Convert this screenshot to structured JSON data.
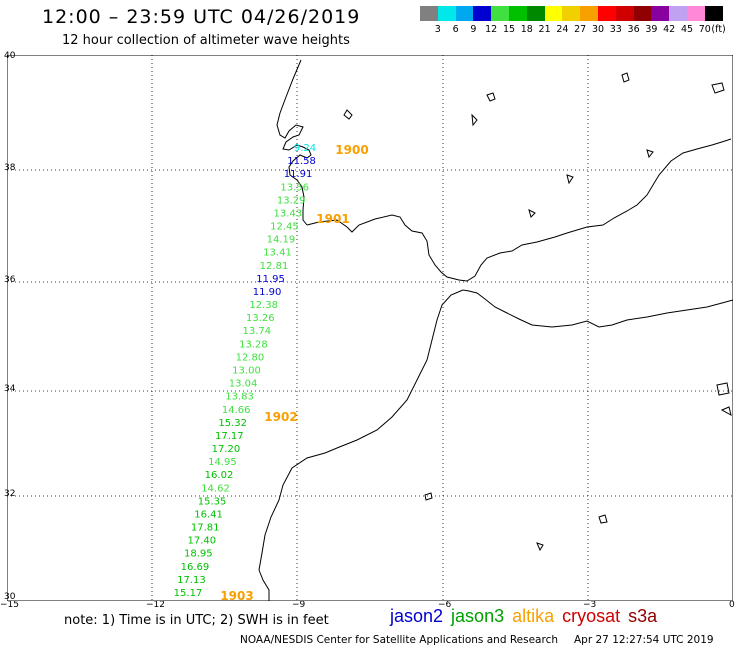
{
  "title": "12:00 – 23:59 UTC 04/26/2019",
  "subtitle": "12 hour collection of altimeter wave heights",
  "colorbar": {
    "colors": [
      "#808080",
      "#00e8e8",
      "#00a8f0",
      "#0000d0",
      "#40e040",
      "#00c000",
      "#008800",
      "#ffff00",
      "#f0d000",
      "#f8a000",
      "#ff0000",
      "#d00000",
      "#900000",
      "#8800a0",
      "#c0a0f0",
      "#ff88d8",
      "#000000"
    ],
    "labels": [
      "3",
      "6",
      "9",
      "12",
      "15",
      "18",
      "21",
      "24",
      "27",
      "30",
      "33",
      "36",
      "39",
      "42",
      "45",
      "70",
      "(ft)"
    ]
  },
  "axes": {
    "x_ticks": [
      "−15",
      "−12",
      "−9",
      "−6",
      "−3",
      "0"
    ],
    "y_ticks": [
      "40",
      "38",
      "36",
      "34",
      "32",
      "30"
    ]
  },
  "chart_data": {
    "type": "scatter",
    "xlim": [
      -15,
      0
    ],
    "ylim": [
      30,
      40
    ],
    "grid": true,
    "track_points": [
      {
        "label": "9.24",
        "color": "#00e8e8"
      },
      {
        "label": "11.58",
        "color": "#0000d0"
      },
      {
        "label": "11.91",
        "color": "#0000d0"
      },
      {
        "label": "13.56",
        "color": "#40e040"
      },
      {
        "label": "13.29",
        "color": "#40e040"
      },
      {
        "label": "13.43",
        "color": "#40e040"
      },
      {
        "label": "12.45",
        "color": "#40e040"
      },
      {
        "label": "14.19",
        "color": "#40e040"
      },
      {
        "label": "13.41",
        "color": "#40e040"
      },
      {
        "label": "12.81",
        "color": "#40e040"
      },
      {
        "label": "11.95",
        "color": "#0000d0"
      },
      {
        "label": "11.90",
        "color": "#0000d0"
      },
      {
        "label": "12.38",
        "color": "#40e040"
      },
      {
        "label": "13.26",
        "color": "#40e040"
      },
      {
        "label": "13.74",
        "color": "#40e040"
      },
      {
        "label": "13.28",
        "color": "#40e040"
      },
      {
        "label": "12.80",
        "color": "#40e040"
      },
      {
        "label": "13.00",
        "color": "#40e040"
      },
      {
        "label": "13.04",
        "color": "#40e040"
      },
      {
        "label": "13.83",
        "color": "#40e040"
      },
      {
        "label": "14.66",
        "color": "#40e040"
      },
      {
        "label": "15.32",
        "color": "#00c000"
      },
      {
        "label": "17.17",
        "color": "#00c000"
      },
      {
        "label": "17.20",
        "color": "#00c000"
      },
      {
        "label": "14.95",
        "color": "#40e040"
      },
      {
        "label": "16.02",
        "color": "#00c000"
      },
      {
        "label": "14.62",
        "color": "#40e040"
      },
      {
        "label": "15.35",
        "color": "#00c000"
      },
      {
        "label": "16.41",
        "color": "#00c000"
      },
      {
        "label": "17.81",
        "color": "#00c000"
      },
      {
        "label": "17.40",
        "color": "#00c000"
      },
      {
        "label": "18.95",
        "color": "#00c000"
      },
      {
        "label": "16.69",
        "color": "#00c000"
      },
      {
        "label": "17.13",
        "color": "#00c000"
      },
      {
        "label": "15.17",
        "color": "#00c000"
      }
    ],
    "time_labels": [
      {
        "label": "1900",
        "color": "#f8a000"
      },
      {
        "label": "1901",
        "color": "#f8a000"
      },
      {
        "label": "1902",
        "color": "#f8a000"
      },
      {
        "label": "1903",
        "color": "#f8a000"
      }
    ]
  },
  "note": "note: 1) Time is in UTC; 2) SWH is in feet",
  "satellites": [
    {
      "name": "jason2",
      "color": "#0000d0"
    },
    {
      "name": "jason3",
      "color": "#00a000"
    },
    {
      "name": "altika",
      "color": "#f8a000"
    },
    {
      "name": "cryosat",
      "color": "#d00000"
    },
    {
      "name": "s3a",
      "color": "#900000"
    }
  ],
  "footer": {
    "left": "NOAA/NESDIS Center for Satellite Applications and Research",
    "right": "Apr 27 12:27:54 UTC 2019"
  }
}
